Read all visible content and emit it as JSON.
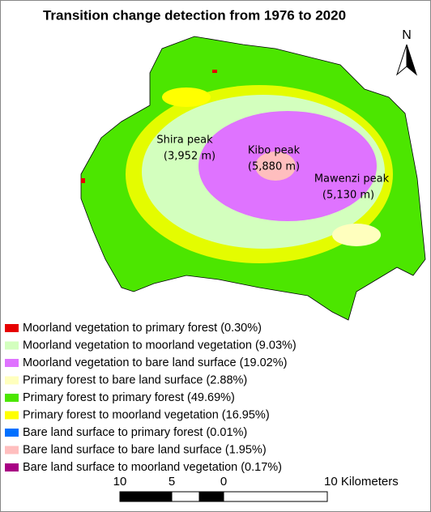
{
  "title": "Transition change detection from 1976 to 2020",
  "north": "N",
  "peaks": [
    {
      "name": "Shira peak",
      "elevation": "(3,952 m)"
    },
    {
      "name": "Kibo peak",
      "elevation": "(5,880 m)"
    },
    {
      "name": "Mawenzi peak",
      "elevation": "(5,130 m)"
    }
  ],
  "legend": [
    {
      "label": "Moorland vegetation to primary forest (0.30%)",
      "color": "#e60000"
    },
    {
      "label": "Moorland vegetation to moorland vegetation (9.03%)",
      "color": "#d3ffbe"
    },
    {
      "label": "Moorland vegetation to bare land surface (19.02%)",
      "color": "#df73ff"
    },
    {
      "label": "Primary forest to bare land surface (2.88%)",
      "color": "#ffffbe"
    },
    {
      "label": "Primary forest to primary forest (49.69%)",
      "color": "#4ce600"
    },
    {
      "label": "Primary forest to moorland vegetation (16.95%)",
      "color": "#ffff00"
    },
    {
      "label": "Bare land surface to primary forest (0.01%)",
      "color": "#0070ff"
    },
    {
      "label": "Bare land surface to  bare land surface (1.95%)",
      "color": "#ffbebe"
    },
    {
      "label": "Bare land surface to moorland vegetation (0.17%)",
      "color": "#a80084"
    }
  ],
  "scale_bar": {
    "labels": [
      "10",
      "5",
      "0",
      "10 Kilometers"
    ]
  }
}
